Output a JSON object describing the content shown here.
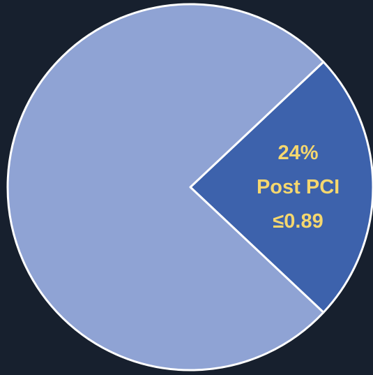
{
  "chart_data": {
    "type": "pie",
    "categories": [
      "Post PCI ≤0.89",
      null
    ],
    "values": [
      24,
      76
    ],
    "value_labels": [
      "24%",
      null
    ],
    "colors": [
      "#3d62ac",
      "#8fa3d4"
    ]
  }
}
